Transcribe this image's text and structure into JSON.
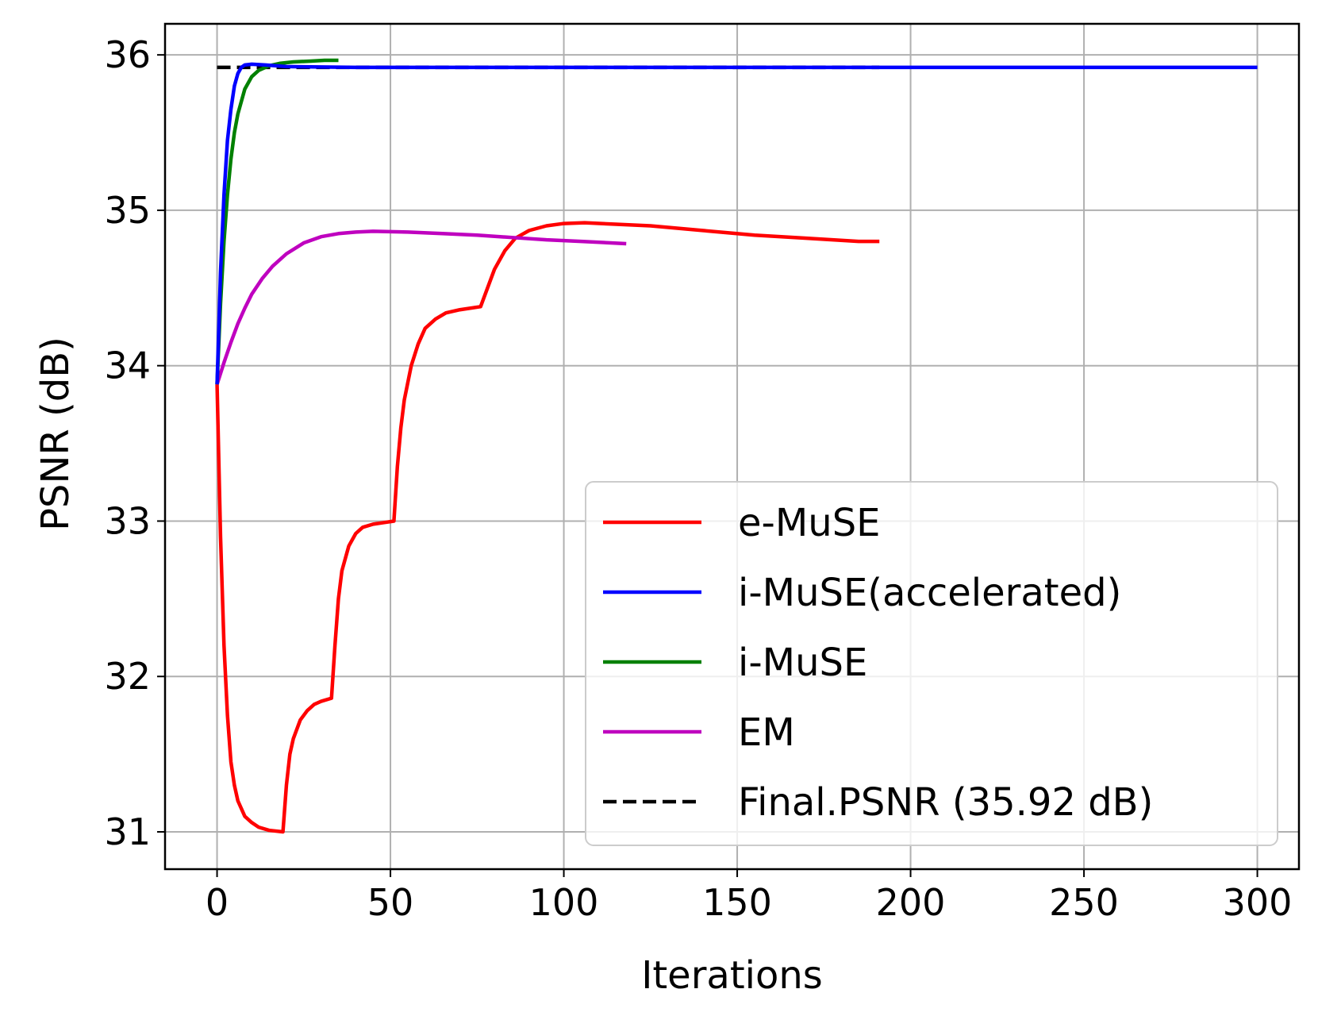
{
  "chart_data": {
    "type": "line",
    "xlabel": "Iterations",
    "ylabel": "PSNR (dB)",
    "xlim": [
      -15,
      312
    ],
    "ylim": [
      30.76,
      36.2
    ],
    "xticks": [
      0,
      50,
      100,
      150,
      200,
      250,
      300
    ],
    "yticks": [
      31,
      32,
      33,
      34,
      35,
      36
    ],
    "grid": true,
    "legend_position": "lower-right",
    "series": [
      {
        "name": "e-MuSE",
        "color": "#ff0000",
        "dash": "solid",
        "points": [
          [
            0,
            33.88
          ],
          [
            1,
            32.9
          ],
          [
            2,
            32.2
          ],
          [
            3,
            31.75
          ],
          [
            4,
            31.45
          ],
          [
            5,
            31.3
          ],
          [
            6,
            31.2
          ],
          [
            8,
            31.1
          ],
          [
            10,
            31.06
          ],
          [
            12,
            31.03
          ],
          [
            15,
            31.01
          ],
          [
            19,
            31.0
          ],
          [
            20,
            31.3
          ],
          [
            21,
            31.5
          ],
          [
            22,
            31.6
          ],
          [
            24,
            31.72
          ],
          [
            26,
            31.78
          ],
          [
            28,
            31.82
          ],
          [
            30,
            31.84
          ],
          [
            33,
            31.86
          ],
          [
            34,
            32.2
          ],
          [
            35,
            32.5
          ],
          [
            36,
            32.68
          ],
          [
            38,
            32.84
          ],
          [
            40,
            32.92
          ],
          [
            42,
            32.96
          ],
          [
            45,
            32.98
          ],
          [
            48,
            32.99
          ],
          [
            51,
            33.0
          ],
          [
            52,
            33.35
          ],
          [
            53,
            33.6
          ],
          [
            54,
            33.78
          ],
          [
            56,
            34.0
          ],
          [
            58,
            34.14
          ],
          [
            60,
            34.24
          ],
          [
            63,
            34.3
          ],
          [
            66,
            34.34
          ],
          [
            70,
            34.36
          ],
          [
            76,
            34.38
          ],
          [
            78,
            34.5
          ],
          [
            80,
            34.62
          ],
          [
            83,
            34.74
          ],
          [
            86,
            34.82
          ],
          [
            90,
            34.87
          ],
          [
            95,
            34.9
          ],
          [
            100,
            34.915
          ],
          [
            106,
            34.92
          ],
          [
            115,
            34.91
          ],
          [
            125,
            34.9
          ],
          [
            140,
            34.87
          ],
          [
            155,
            34.84
          ],
          [
            170,
            34.82
          ],
          [
            185,
            34.8
          ],
          [
            191,
            34.8
          ]
        ]
      },
      {
        "name": "i-MuSE(accelerated)",
        "color": "#0000ff",
        "dash": "solid",
        "points": [
          [
            0,
            33.88
          ],
          [
            1,
            34.6
          ],
          [
            2,
            35.1
          ],
          [
            3,
            35.45
          ],
          [
            4,
            35.65
          ],
          [
            5,
            35.8
          ],
          [
            6,
            35.88
          ],
          [
            7,
            35.92
          ],
          [
            8,
            35.935
          ],
          [
            10,
            35.94
          ],
          [
            14,
            35.935
          ],
          [
            20,
            35.925
          ],
          [
            40,
            35.92
          ],
          [
            100,
            35.92
          ],
          [
            200,
            35.92
          ],
          [
            300,
            35.92
          ]
        ]
      },
      {
        "name": "i-MuSE",
        "color": "#008000",
        "dash": "solid",
        "points": [
          [
            0,
            33.88
          ],
          [
            1,
            34.4
          ],
          [
            2,
            34.8
          ],
          [
            3,
            35.1
          ],
          [
            4,
            35.33
          ],
          [
            5,
            35.5
          ],
          [
            6,
            35.62
          ],
          [
            8,
            35.78
          ],
          [
            10,
            35.86
          ],
          [
            12,
            35.9
          ],
          [
            15,
            35.93
          ],
          [
            18,
            35.945
          ],
          [
            22,
            35.955
          ],
          [
            27,
            35.96
          ],
          [
            31,
            35.965
          ],
          [
            35,
            35.965
          ]
        ]
      },
      {
        "name": "EM",
        "color": "#bf00bf",
        "dash": "solid",
        "points": [
          [
            0,
            33.88
          ],
          [
            2,
            34.02
          ],
          [
            4,
            34.15
          ],
          [
            6,
            34.27
          ],
          [
            8,
            34.37
          ],
          [
            10,
            34.46
          ],
          [
            13,
            34.56
          ],
          [
            16,
            34.64
          ],
          [
            20,
            34.72
          ],
          [
            25,
            34.79
          ],
          [
            30,
            34.83
          ],
          [
            35,
            34.85
          ],
          [
            40,
            34.86
          ],
          [
            45,
            34.865
          ],
          [
            55,
            34.86
          ],
          [
            65,
            34.85
          ],
          [
            75,
            34.84
          ],
          [
            85,
            34.825
          ],
          [
            95,
            34.81
          ],
          [
            105,
            34.8
          ],
          [
            118,
            34.785
          ]
        ]
      },
      {
        "name": "Final.PSNR (35.92 dB)",
        "color": "#000000",
        "dash": "dashed",
        "points": [
          [
            0,
            35.92
          ],
          [
            191,
            35.92
          ]
        ]
      }
    ]
  }
}
